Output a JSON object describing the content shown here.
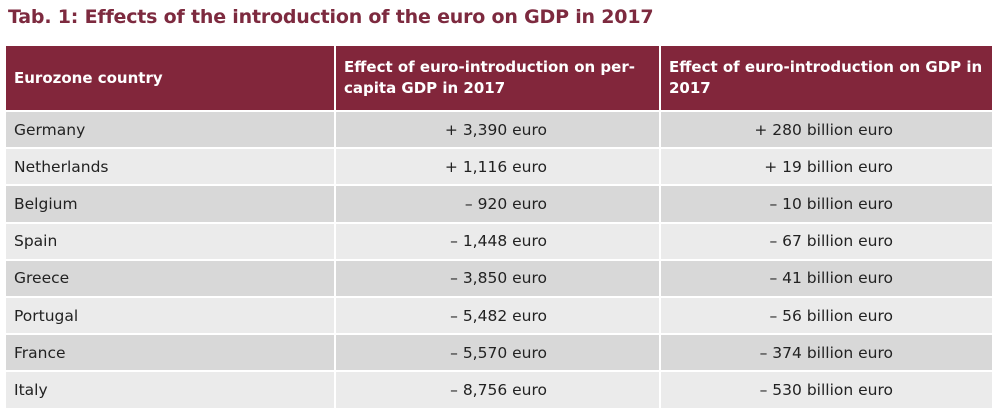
{
  "title": "Tab. 1: Effects of the introduction of the euro on GDP in 2017",
  "header": {
    "country": "Eurozone country",
    "per_capita": "Effect of euro-introduction on per-capita GDP in 2017",
    "total": "Effect of euro-introduction on GDP in 2017"
  },
  "rows": [
    {
      "country": "Germany",
      "per_capita": "+ 3,390 euro",
      "total": "+ 280 billion euro"
    },
    {
      "country": "Netherlands",
      "per_capita": "+ 1,116 euro",
      "total": "+ 19 billion euro"
    },
    {
      "country": "Belgium",
      "per_capita": "– 920 euro",
      "total": "– 10 billion euro"
    },
    {
      "country": "Spain",
      "per_capita": "– 1,448 euro",
      "total": "– 67 billion euro"
    },
    {
      "country": "Greece",
      "per_capita": "– 3,850 euro",
      "total": "– 41 billion euro"
    },
    {
      "country": "Portugal",
      "per_capita": "– 5,482 euro",
      "total": "– 56 billion euro"
    },
    {
      "country": "France",
      "per_capita": "– 5,570 euro",
      "total": "– 374 billion euro"
    },
    {
      "country": "Italy",
      "per_capita": "– 8,756 euro",
      "total": "– 530 billion euro"
    }
  ],
  "colors": {
    "header_bg": "#82263b",
    "title": "#7d2a3f",
    "row_dark": "#d8d8d8",
    "row_light": "#ebebeb"
  }
}
